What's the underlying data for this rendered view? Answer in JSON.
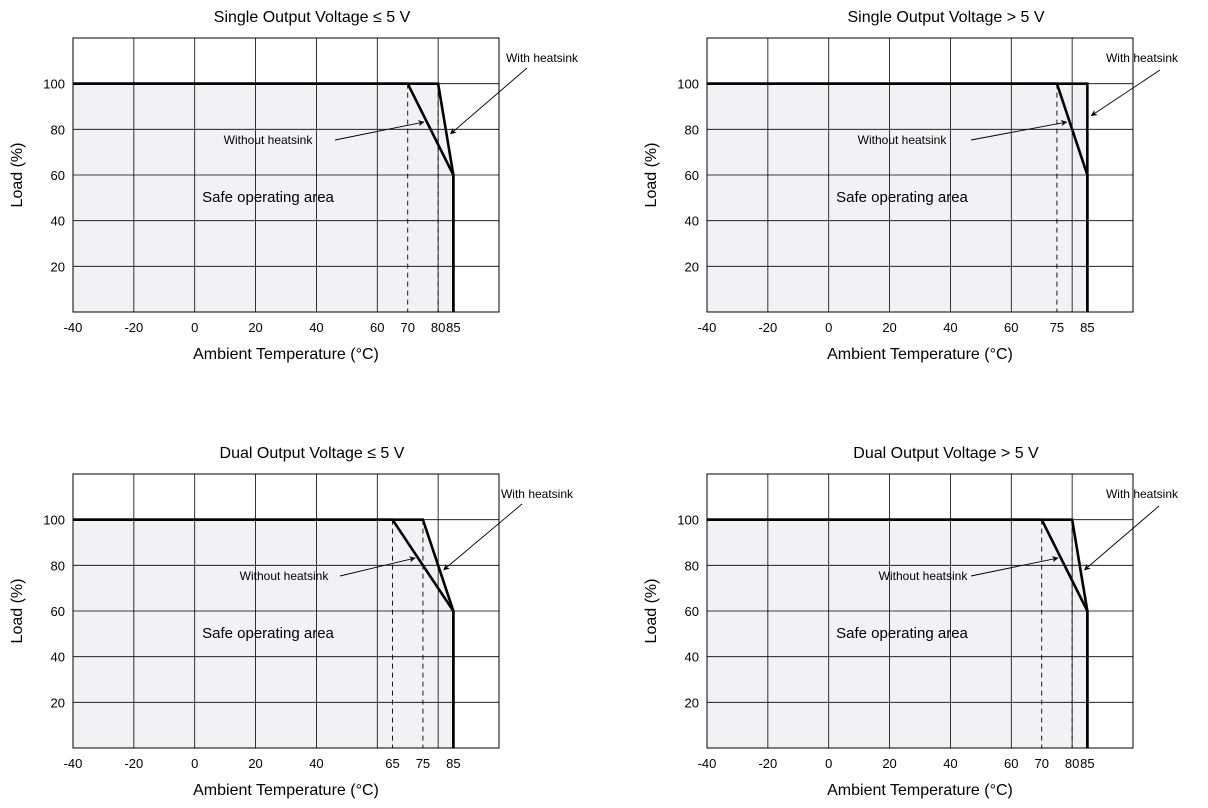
{
  "chart_data": [
    {
      "type": "line",
      "title": "Single Output Voltage ≤ 5 V",
      "xlabel": "Ambient Temperature (°C)",
      "ylabel": "Load (%)",
      "xlim": [
        -40,
        100
      ],
      "ylim": [
        0,
        120
      ],
      "x_ticks": [
        -40,
        -20,
        0,
        20,
        40,
        60,
        70,
        80,
        85
      ],
      "y_ticks": [
        20,
        40,
        60,
        80,
        100
      ],
      "grid": true,
      "region_label": "Safe operating area",
      "series": [
        {
          "name": "With heatsink",
          "x": [
            -40,
            80,
            85,
            85
          ],
          "y": [
            100,
            100,
            60,
            0
          ]
        },
        {
          "name": "Without heatsink",
          "x": [
            -40,
            70,
            85,
            85
          ],
          "y": [
            100,
            100,
            60,
            0
          ]
        }
      ],
      "dashed_refs": [
        70,
        80
      ]
    },
    {
      "type": "line",
      "title": "Single Output Voltage > 5 V",
      "xlabel": "Ambient Temperature (°C)",
      "ylabel": "Load (%)",
      "xlim": [
        -40,
        100
      ],
      "ylim": [
        0,
        120
      ],
      "x_ticks": [
        -40,
        -20,
        0,
        20,
        40,
        60,
        75,
        85
      ],
      "y_ticks": [
        20,
        40,
        60,
        80,
        100
      ],
      "grid": true,
      "region_label": "Safe operating area",
      "series": [
        {
          "name": "With heatsink",
          "x": [
            -40,
            85,
            85
          ],
          "y": [
            100,
            100,
            0
          ]
        },
        {
          "name": "Without heatsink",
          "x": [
            -40,
            75,
            85,
            85
          ],
          "y": [
            100,
            100,
            60,
            0
          ]
        }
      ],
      "dashed_refs": [
        75
      ]
    },
    {
      "type": "line",
      "title": "Dual Output Voltage ≤ 5 V",
      "xlabel": "Ambient Temperature (°C)",
      "ylabel": "Load (%)",
      "xlim": [
        -40,
        100
      ],
      "ylim": [
        0,
        120
      ],
      "x_ticks": [
        -40,
        -20,
        0,
        20,
        40,
        65,
        75,
        85
      ],
      "y_ticks": [
        20,
        40,
        60,
        80,
        100
      ],
      "grid": true,
      "region_label": "Safe operating area",
      "series": [
        {
          "name": "With heatsink",
          "x": [
            -40,
            75,
            85,
            85
          ],
          "y": [
            100,
            100,
            60,
            0
          ]
        },
        {
          "name": "Without heatsink",
          "x": [
            -40,
            65,
            85,
            85
          ],
          "y": [
            100,
            100,
            60,
            0
          ]
        }
      ],
      "dashed_refs": [
        65,
        75
      ]
    },
    {
      "type": "line",
      "title": "Dual Output Voltage > 5 V",
      "xlabel": "Ambient Temperature (°C)",
      "ylabel": "Load (%)",
      "xlim": [
        -40,
        100
      ],
      "ylim": [
        0,
        120
      ],
      "x_ticks": [
        -40,
        -20,
        0,
        20,
        40,
        60,
        70,
        80,
        85
      ],
      "y_ticks": [
        20,
        40,
        60,
        80,
        100
      ],
      "grid": true,
      "region_label": "Safe operating area",
      "series": [
        {
          "name": "With heatsink",
          "x": [
            -40,
            80,
            85,
            85
          ],
          "y": [
            100,
            100,
            60,
            0
          ]
        },
        {
          "name": "Without heatsink",
          "x": [
            -40,
            70,
            85,
            85
          ],
          "y": [
            100,
            100,
            60,
            0
          ]
        }
      ],
      "dashed_refs": [
        70,
        80
      ]
    }
  ]
}
